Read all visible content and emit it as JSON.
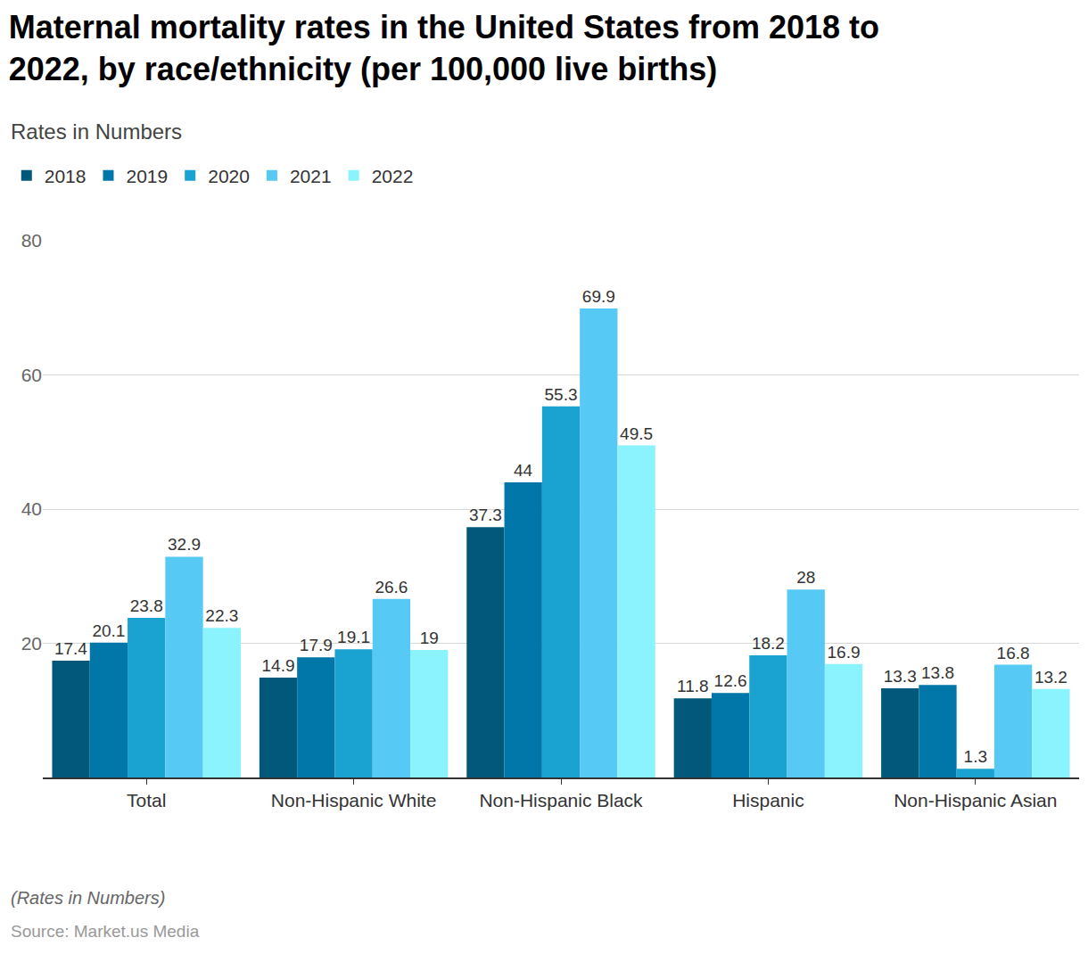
{
  "chart_data": {
    "type": "bar",
    "title": "Maternal mortality rates in the United States from 2018 to 2022, by race/ethnicity (per 100,000 live births)",
    "subtitle": "Rates in Numbers",
    "annotations": [
      "(Rates in Numbers)",
      "Source: Market.us Media"
    ],
    "categories": [
      "Total",
      "Non-Hispanic White",
      "Non-Hispanic Black",
      "Hispanic",
      "Non-Hispanic Asian"
    ],
    "series": [
      {
        "name": "2018",
        "color": "#02587b",
        "values": [
          17.4,
          14.9,
          37.3,
          11.8,
          13.3
        ]
      },
      {
        "name": "2019",
        "color": "#0077a8",
        "values": [
          20.1,
          17.9,
          44,
          12.6,
          13.8
        ]
      },
      {
        "name": "2020",
        "color": "#1aa3d1",
        "values": [
          23.8,
          19.1,
          55.3,
          18.2,
          1.3
        ]
      },
      {
        "name": "2021",
        "color": "#57c9f5",
        "values": [
          32.9,
          26.6,
          69.9,
          28,
          16.8
        ]
      },
      {
        "name": "2022",
        "color": "#8bf3fd",
        "values": [
          22.3,
          19,
          49.5,
          16.9,
          13.2
        ]
      }
    ],
    "ylim": [
      0,
      80
    ],
    "yticks": [
      20,
      40,
      60,
      80
    ],
    "grid": true,
    "legend": "top-left",
    "data_labels": true
  }
}
